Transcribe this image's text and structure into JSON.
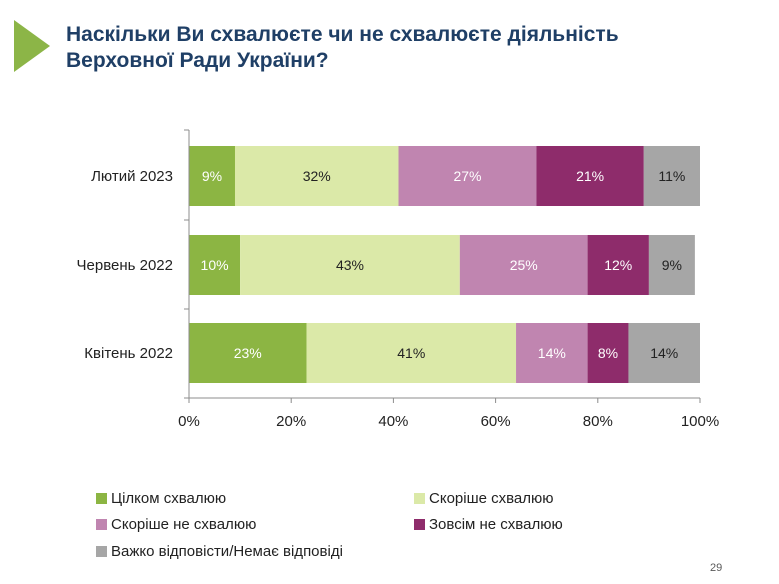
{
  "header": {
    "title_line1": "Наскільки Ви схвалюєте чи не схвалюєте діяльність",
    "title_line2": "Верховної Ради України?",
    "accent_color": "#8cb547"
  },
  "chart_data": {
    "type": "bar",
    "orientation": "horizontal",
    "stacked": true,
    "categories": [
      "Лютий 2023",
      "Червень 2022",
      "Квітень 2022"
    ],
    "series": [
      {
        "name": "Цілком схвалюю",
        "color": "#8cb543",
        "values": [
          9,
          10,
          23
        ],
        "labels": [
          "9%",
          "10%",
          "23%"
        ],
        "label_color": "#ffffff"
      },
      {
        "name": "Скоріше схвалюю",
        "color": "#dbe9a8",
        "values": [
          32,
          43,
          41
        ],
        "labels": [
          "32%",
          "43%",
          "41%"
        ],
        "label_color": "#222222"
      },
      {
        "name": "Скоріше не схвалюю",
        "color": "#c085b0",
        "values": [
          27,
          25,
          14
        ],
        "labels": [
          "27%",
          "25%",
          "14%"
        ],
        "label_color": "#ffffff"
      },
      {
        "name": "Зовсім не схвалюю",
        "color": "#8e2c6b",
        "values": [
          21,
          12,
          8
        ],
        "labels": [
          "21%",
          "12%",
          "8%"
        ],
        "label_color": "#ffffff"
      },
      {
        "name": "Важко відповісти/Немає відповіді",
        "color": "#a6a6a6",
        "values": [
          11,
          9,
          14
        ],
        "labels": [
          "11%",
          "9%",
          "14%"
        ],
        "label_color": "#222222"
      }
    ],
    "xlim": [
      0,
      100
    ],
    "xticks": [
      0,
      20,
      40,
      60,
      80,
      100
    ],
    "xtick_labels": [
      "0%",
      "20%",
      "40%",
      "60%",
      "80%",
      "100%"
    ],
    "grid": false,
    "legend_position": "bottom"
  },
  "footer": {
    "page_number": "29"
  }
}
